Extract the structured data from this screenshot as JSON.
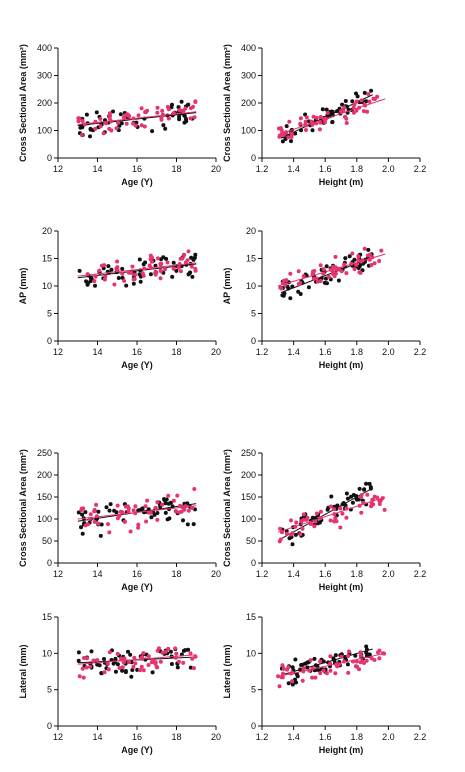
{
  "colors": {
    "black_series": "#111111",
    "pink_series": "#e6356e",
    "axis": "#111111"
  },
  "chart_data": [
    {
      "type": "scatter",
      "xlabel": "Age (Y)",
      "ylabel": "Cross Sectional Area (mm²)",
      "xlim": [
        12,
        20
      ],
      "ylim": [
        0,
        400
      ],
      "xticks": [
        "12",
        "14",
        "16",
        "18",
        "20"
      ],
      "yticks": [
        "0",
        "100",
        "200",
        "300",
        "400"
      ],
      "series": [
        {
          "color": "#111111",
          "n": 60,
          "x_range": [
            13.0,
            19.0
          ],
          "trend": [
            [
              13.0,
              118
            ],
            [
              19.0,
              165
            ]
          ],
          "spread": 40
        },
        {
          "color": "#e6356e",
          "n": 55,
          "x_range": [
            13.0,
            19.0
          ],
          "trend": [
            [
              13.0,
              122
            ],
            [
              19.0,
              168
            ]
          ],
          "spread": 40
        }
      ]
    },
    {
      "type": "scatter",
      "xlabel": "Height (m)",
      "ylabel": "Cross Sectional Area (mm²)",
      "xlim": [
        1.2,
        2.2
      ],
      "ylim": [
        0,
        400
      ],
      "xticks": [
        "1.2",
        "1.4",
        "1.6",
        "1.8",
        "2.0",
        "2.2"
      ],
      "yticks": [
        "0",
        "100",
        "200",
        "300",
        "400"
      ],
      "series": [
        {
          "color": "#111111",
          "n": 60,
          "x_range": [
            1.32,
            1.9
          ],
          "trend": [
            [
              1.32,
              72
            ],
            [
              1.9,
              230
            ]
          ],
          "spread": 32
        },
        {
          "color": "#e6356e",
          "n": 55,
          "x_range": [
            1.3,
            1.98
          ],
          "trend": [
            [
              1.3,
              85
            ],
            [
              1.98,
              215
            ]
          ],
          "spread": 32
        }
      ]
    },
    {
      "type": "scatter",
      "xlabel": "Age (Y)",
      "ylabel": "AP (mm)",
      "xlim": [
        12,
        20
      ],
      "ylim": [
        0,
        20
      ],
      "xticks": [
        "12",
        "14",
        "16",
        "18",
        "20"
      ],
      "yticks": [
        "0",
        "5",
        "10",
        "15",
        "20"
      ],
      "series": [
        {
          "color": "#111111",
          "n": 60,
          "x_range": [
            13.0,
            19.0
          ],
          "trend": [
            [
              13.0,
              11.5
            ],
            [
              19.0,
              14.0
            ]
          ],
          "spread": 2.2
        },
        {
          "color": "#e6356e",
          "n": 55,
          "x_range": [
            13.0,
            19.0
          ],
          "trend": [
            [
              13.0,
              11.8
            ],
            [
              19.0,
              14.2
            ]
          ],
          "spread": 2.2
        }
      ]
    },
    {
      "type": "scatter",
      "xlabel": "Height (m)",
      "ylabel": "AP (mm)",
      "xlim": [
        1.2,
        2.2
      ],
      "ylim": [
        0,
        20
      ],
      "xticks": [
        "1.2",
        "1.4",
        "1.6",
        "1.8",
        "2.0",
        "2.2"
      ],
      "yticks": [
        "0",
        "5",
        "10",
        "15",
        "20"
      ],
      "series": [
        {
          "color": "#111111",
          "n": 60,
          "x_range": [
            1.32,
            1.9
          ],
          "trend": [
            [
              1.32,
              8.8
            ],
            [
              1.9,
              15.2
            ]
          ],
          "spread": 1.9
        },
        {
          "color": "#e6356e",
          "n": 55,
          "x_range": [
            1.3,
            1.98
          ],
          "trend": [
            [
              1.3,
              10.0
            ],
            [
              1.98,
              15.8
            ]
          ],
          "spread": 1.9
        }
      ]
    },
    {
      "type": "scatter",
      "xlabel": "Age (Y)",
      "ylabel": "Cross Sectional Area (mm²)",
      "xlim": [
        12,
        20
      ],
      "ylim": [
        0,
        250
      ],
      "xticks": [
        "12",
        "14",
        "16",
        "18",
        "20"
      ],
      "yticks": [
        "0",
        "50",
        "100",
        "150",
        "200",
        "250"
      ],
      "series": [
        {
          "color": "#111111",
          "n": 60,
          "x_range": [
            13.0,
            19.0
          ],
          "trend": [
            [
              13.0,
              95
            ],
            [
              19.0,
              135
            ]
          ],
          "spread": 30
        },
        {
          "color": "#e6356e",
          "n": 55,
          "x_range": [
            13.0,
            19.0
          ],
          "trend": [
            [
              13.0,
              100
            ],
            [
              19.0,
              130
            ]
          ],
          "spread": 30
        }
      ]
    },
    {
      "type": "scatter",
      "xlabel": "Height (m)",
      "ylabel": "Cross Sectional Area (mm²)",
      "xlim": [
        1.2,
        2.2
      ],
      "ylim": [
        0,
        250
      ],
      "xticks": [
        "1.2",
        "1.4",
        "1.6",
        "1.8",
        "2.0",
        "2.2"
      ],
      "yticks": [
        "0",
        "50",
        "100",
        "150",
        "200",
        "250"
      ],
      "series": [
        {
          "color": "#111111",
          "n": 60,
          "x_range": [
            1.32,
            1.9
          ],
          "trend": [
            [
              1.32,
              55
            ],
            [
              1.9,
              170
            ]
          ],
          "spread": 25
        },
        {
          "color": "#e6356e",
          "n": 55,
          "x_range": [
            1.3,
            1.98
          ],
          "trend": [
            [
              1.3,
              70
            ],
            [
              1.98,
              150
            ]
          ],
          "spread": 25
        }
      ]
    },
    {
      "type": "scatter",
      "xlabel": "Age (Y)",
      "ylabel": "Lateral (mm)",
      "xlim": [
        12,
        20
      ],
      "ylim": [
        0,
        15
      ],
      "xticks": [
        "12",
        "14",
        "16",
        "18",
        "20"
      ],
      "yticks": [
        "0",
        "5",
        "10",
        "15"
      ],
      "series": [
        {
          "color": "#111111",
          "n": 60,
          "x_range": [
            13.0,
            19.0
          ],
          "trend": [
            [
              13.0,
              8.7
            ],
            [
              19.0,
              9.5
            ]
          ],
          "spread": 1.5
        },
        {
          "color": "#e6356e",
          "n": 55,
          "x_range": [
            13.0,
            19.0
          ],
          "trend": [
            [
              13.0,
              8.5
            ],
            [
              19.0,
              9.8
            ]
          ],
          "spread": 1.5
        }
      ]
    },
    {
      "type": "scatter",
      "xlabel": "Height (m)",
      "ylabel": "Lateral (mm)",
      "xlim": [
        1.2,
        2.2
      ],
      "ylim": [
        0,
        15
      ],
      "xticks": [
        "1.2",
        "1.4",
        "1.6",
        "1.8",
        "2.0",
        "2.2"
      ],
      "yticks": [
        "0",
        "5",
        "10",
        "15"
      ],
      "series": [
        {
          "color": "#111111",
          "n": 60,
          "x_range": [
            1.32,
            1.9
          ],
          "trend": [
            [
              1.32,
              7.0
            ],
            [
              1.9,
              10.6
            ]
          ],
          "spread": 1.3
        },
        {
          "color": "#e6356e",
          "n": 55,
          "x_range": [
            1.3,
            1.98
          ],
          "trend": [
            [
              1.3,
              6.8
            ],
            [
              1.98,
              10.0
            ]
          ],
          "spread": 1.3
        }
      ]
    }
  ]
}
